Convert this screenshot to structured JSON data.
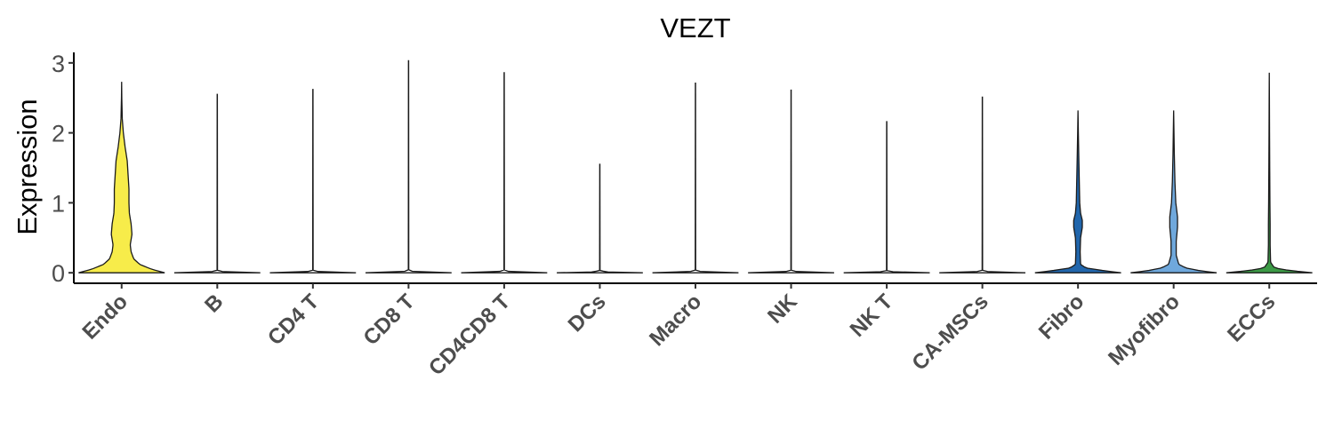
{
  "chart_data": {
    "type": "violin",
    "title": "VEZT",
    "xlabel": "",
    "ylabel": "Expression",
    "ylim": [
      -0.15,
      3.15
    ],
    "yticks": [
      "0",
      "1",
      "2",
      "3"
    ],
    "grid": false,
    "legend": "none",
    "categories": [
      "Endo",
      "B",
      "CD4 T",
      "CD8 T",
      "CD4CD8 T",
      "DCs",
      "Macro",
      "NK",
      "NK T",
      "CA-MSCs",
      "Fibro",
      "Myofibro",
      "ECCs"
    ],
    "colors": [
      "#f7ec4a",
      "#ffffff",
      "#ffffff",
      "#ffffff",
      "#ffffff",
      "#ffffff",
      "#ffffff",
      "#ffffff",
      "#ffffff",
      "#ffffff",
      "#2166ac",
      "#6fa8dc",
      "#3c9a46"
    ],
    "max_values": [
      2.73,
      2.55,
      2.62,
      3.03,
      2.86,
      1.55,
      2.71,
      2.61,
      2.16,
      2.51,
      2.32,
      2.32,
      2.86
    ],
    "density_profiles": [
      [
        [
          0,
          1.0
        ],
        [
          0.05,
          0.7
        ],
        [
          0.12,
          0.42
        ],
        [
          0.2,
          0.28
        ],
        [
          0.3,
          0.22
        ],
        [
          0.4,
          0.2
        ],
        [
          0.55,
          0.24
        ],
        [
          0.7,
          0.22
        ],
        [
          0.85,
          0.18
        ],
        [
          1.0,
          0.17
        ],
        [
          1.2,
          0.17
        ],
        [
          1.4,
          0.15
        ],
        [
          1.6,
          0.13
        ],
        [
          1.8,
          0.08
        ],
        [
          2.0,
          0.04
        ],
        [
          2.2,
          0.015
        ],
        [
          2.5,
          0.004
        ],
        [
          2.73,
          0
        ]
      ],
      [
        [
          0,
          1.0
        ],
        [
          0.01,
          0.2
        ],
        [
          0.03,
          0.005
        ],
        [
          2.55,
          0.002
        ]
      ],
      [
        [
          0,
          1.0
        ],
        [
          0.01,
          0.2
        ],
        [
          0.03,
          0.005
        ],
        [
          2.62,
          0.002
        ]
      ],
      [
        [
          0,
          1.0
        ],
        [
          0.01,
          0.2
        ],
        [
          0.03,
          0.005
        ],
        [
          3.03,
          0.002
        ]
      ],
      [
        [
          0,
          1.0
        ],
        [
          0.01,
          0.2
        ],
        [
          0.03,
          0.005
        ],
        [
          2.86,
          0.002
        ]
      ],
      [
        [
          0,
          1.0
        ],
        [
          0.01,
          0.2
        ],
        [
          0.03,
          0.005
        ],
        [
          1.55,
          0.002
        ]
      ],
      [
        [
          0,
          1.0
        ],
        [
          0.01,
          0.2
        ],
        [
          0.03,
          0.005
        ],
        [
          2.71,
          0.002
        ]
      ],
      [
        [
          0,
          1.0
        ],
        [
          0.01,
          0.2
        ],
        [
          0.03,
          0.005
        ],
        [
          2.61,
          0.002
        ]
      ],
      [
        [
          0,
          1.0
        ],
        [
          0.01,
          0.2
        ],
        [
          0.03,
          0.005
        ],
        [
          2.16,
          0.002
        ]
      ],
      [
        [
          0,
          1.0
        ],
        [
          0.01,
          0.2
        ],
        [
          0.03,
          0.005
        ],
        [
          2.51,
          0.002
        ]
      ],
      [
        [
          0,
          1.0
        ],
        [
          0.03,
          0.6
        ],
        [
          0.07,
          0.18
        ],
        [
          0.12,
          0.06
        ],
        [
          0.3,
          0.05
        ],
        [
          0.5,
          0.06
        ],
        [
          0.65,
          0.1
        ],
        [
          0.75,
          0.1
        ],
        [
          0.85,
          0.06
        ],
        [
          1.0,
          0.04
        ],
        [
          1.3,
          0.03
        ],
        [
          1.6,
          0.02
        ],
        [
          2.0,
          0.008
        ],
        [
          2.32,
          0
        ]
      ],
      [
        [
          0,
          1.0
        ],
        [
          0.03,
          0.6
        ],
        [
          0.07,
          0.28
        ],
        [
          0.12,
          0.12
        ],
        [
          0.25,
          0.06
        ],
        [
          0.45,
          0.06
        ],
        [
          0.65,
          0.09
        ],
        [
          0.8,
          0.09
        ],
        [
          1.0,
          0.05
        ],
        [
          1.3,
          0.03
        ],
        [
          1.7,
          0.015
        ],
        [
          2.0,
          0.008
        ],
        [
          2.32,
          0
        ]
      ],
      [
        [
          0,
          1.0
        ],
        [
          0.03,
          0.5
        ],
        [
          0.07,
          0.12
        ],
        [
          0.15,
          0.03
        ],
        [
          0.4,
          0.02
        ],
        [
          0.7,
          0.02
        ],
        [
          1.0,
          0.015
        ],
        [
          1.5,
          0.01
        ],
        [
          2.0,
          0.006
        ],
        [
          2.5,
          0.003
        ],
        [
          2.86,
          0
        ]
      ]
    ]
  }
}
